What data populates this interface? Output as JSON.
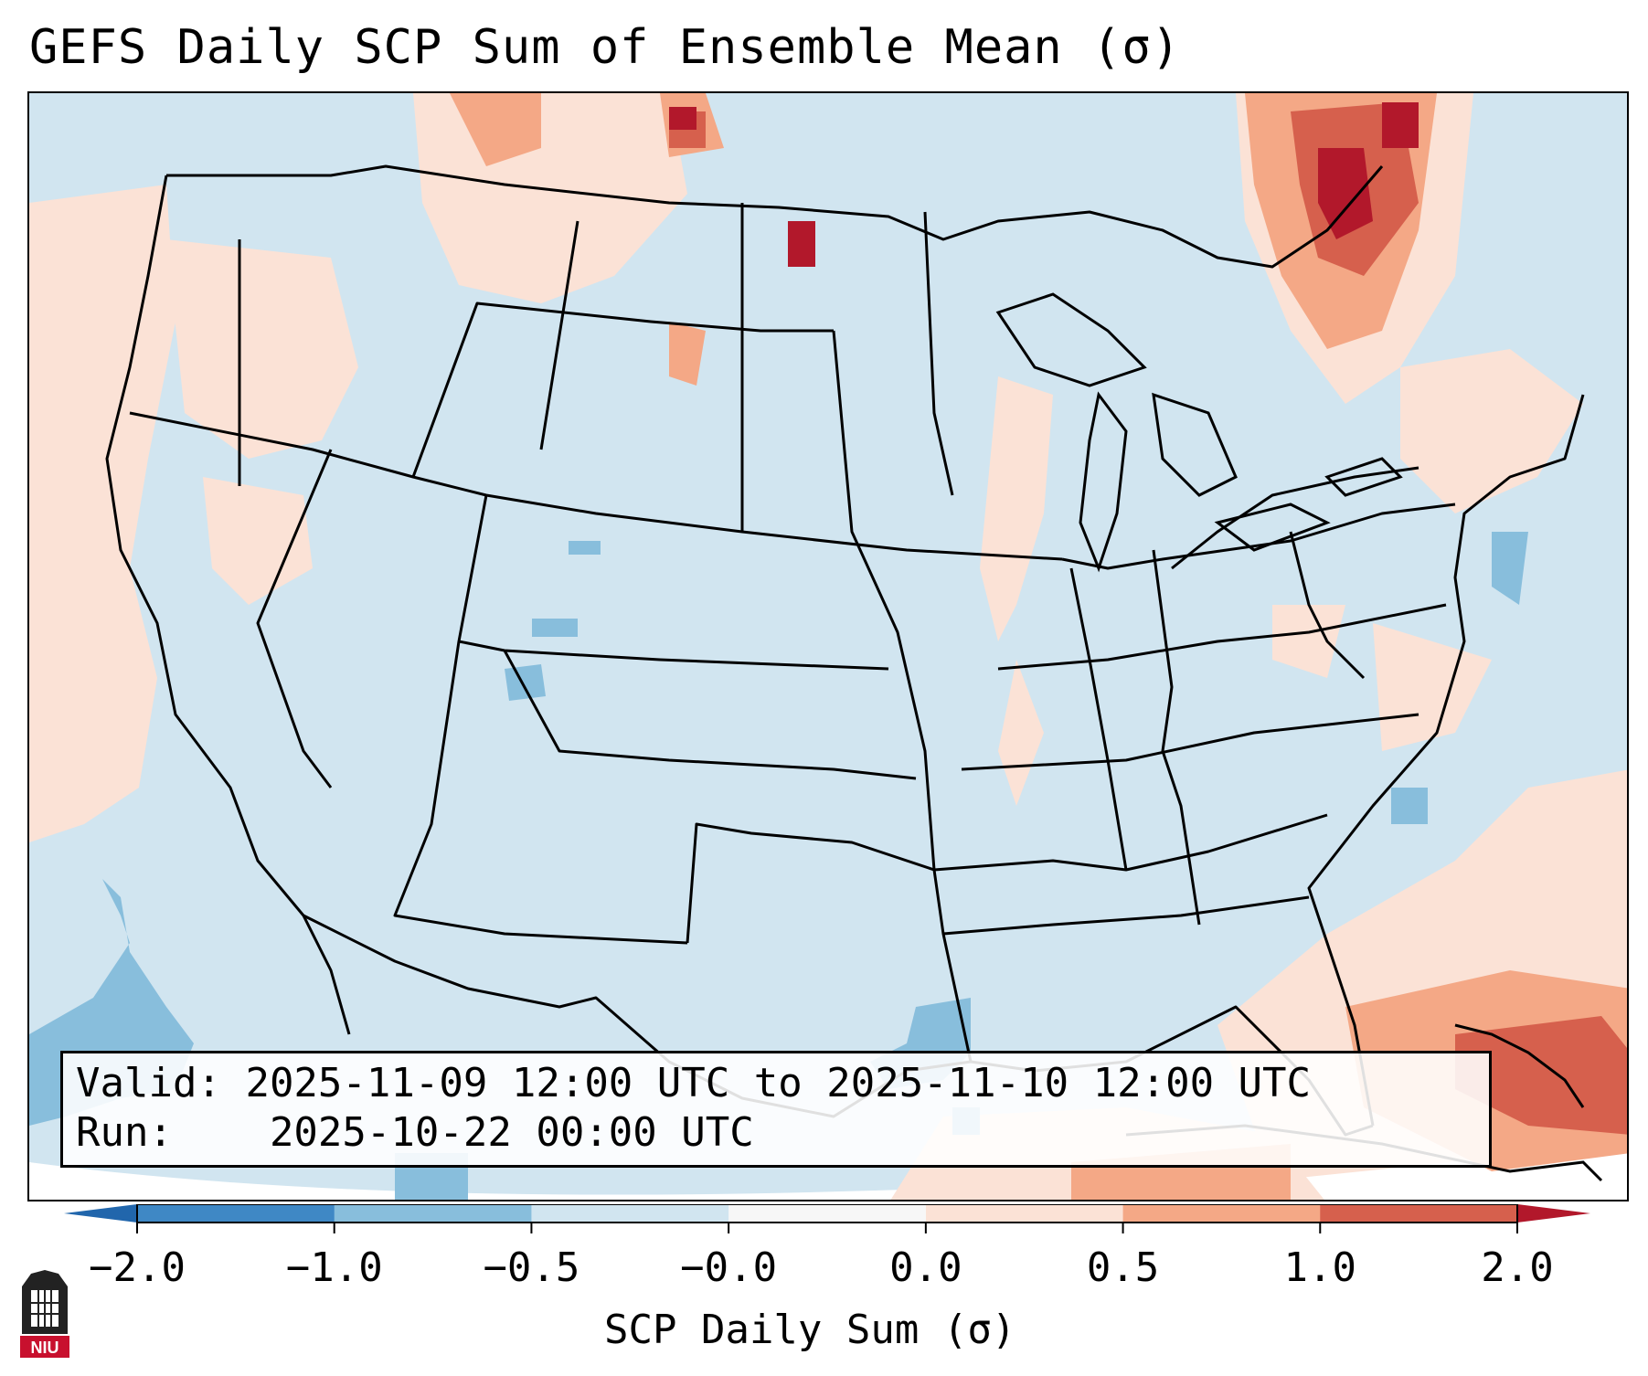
{
  "title": "GEFS Daily SCP Sum of Ensemble Mean (σ)",
  "info": {
    "valid_label": "Valid:",
    "valid_value": "2025-11-09 12:00 UTC to 2025-11-10 12:00 UTC",
    "run_label": "Run:",
    "run_value": "2025-10-22 00:00 UTC"
  },
  "colorbar": {
    "label": "SCP Daily Sum (σ)",
    "ticks": [
      "−2.0",
      "−1.0",
      "−0.5",
      "−0.0",
      "0.0",
      "0.5",
      "1.0",
      "2.0"
    ],
    "bin_colors": [
      "#3f88c5",
      "#88bedc",
      "#d1e5f0",
      "#fbe2d6",
      "#f4a886",
      "#d6604d"
    ],
    "under_color": "#2166ac",
    "over_color": "#b2182b"
  },
  "map": {
    "background_color": "#d1e5f0",
    "outline_color": "#000000",
    "region": "Continental United States"
  },
  "logo": {
    "text": "NIU"
  }
}
